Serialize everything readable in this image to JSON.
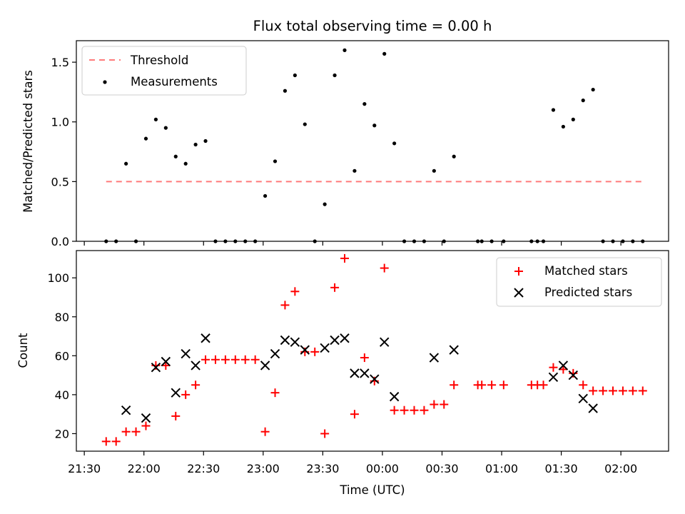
{
  "figure": {
    "title": "Flux total observing time = 0.00 h",
    "xlabel": "Time (UTC)"
  },
  "chart_data": [
    {
      "type": "scatter",
      "panel": "top",
      "ylabel": "Matched/Predicted stars",
      "ylim": [
        0,
        1.68
      ],
      "yticks": [
        "0.0",
        "0.5",
        "1.0",
        "1.5"
      ],
      "xlim": [
        "21:26",
        "02:24"
      ],
      "legend_position": "upper-left",
      "series": [
        {
          "name": "Threshold",
          "kind": "dashed-line",
          "color": "#ff7b7b",
          "x": [
            "21:41",
            "02:11"
          ],
          "y": [
            0.5,
            0.5
          ]
        },
        {
          "name": "Measurements",
          "kind": "point",
          "color": "#000000",
          "points": [
            [
              "21:41",
              0
            ],
            [
              "21:46",
              0
            ],
            [
              "21:51",
              0.65
            ],
            [
              "21:56",
              0
            ],
            [
              "22:01",
              0.86
            ],
            [
              "22:06",
              1.02
            ],
            [
              "22:11",
              0.95
            ],
            [
              "22:16",
              0.71
            ],
            [
              "22:21",
              0.65
            ],
            [
              "22:26",
              0.81
            ],
            [
              "22:31",
              0.84
            ],
            [
              "22:36",
              0
            ],
            [
              "22:41",
              0
            ],
            [
              "22:46",
              0
            ],
            [
              "22:51",
              0
            ],
            [
              "22:56",
              0
            ],
            [
              "23:01",
              0.38
            ],
            [
              "23:06",
              0.67
            ],
            [
              "23:11",
              1.26
            ],
            [
              "23:16",
              1.39
            ],
            [
              "23:21",
              0.98
            ],
            [
              "23:26",
              0
            ],
            [
              "23:31",
              0.31
            ],
            [
              "23:36",
              1.39
            ],
            [
              "23:41",
              1.6
            ],
            [
              "23:46",
              0.59
            ],
            [
              "23:51",
              1.15
            ],
            [
              "23:56",
              0.97
            ],
            [
              "00:01",
              1.57
            ],
            [
              "00:06",
              0.82
            ],
            [
              "00:11",
              0
            ],
            [
              "00:16",
              0
            ],
            [
              "00:21",
              0
            ],
            [
              "00:26",
              0.59
            ],
            [
              "00:31",
              0
            ],
            [
              "00:36",
              0.71
            ],
            [
              "00:48",
              0
            ],
            [
              "00:50",
              0
            ],
            [
              "00:55",
              0
            ],
            [
              "01:01",
              0
            ],
            [
              "01:15",
              0
            ],
            [
              "01:18",
              0
            ],
            [
              "01:21",
              0
            ],
            [
              "01:26",
              1.1
            ],
            [
              "01:31",
              0.96
            ],
            [
              "01:36",
              1.02
            ],
            [
              "01:41",
              1.18
            ],
            [
              "01:46",
              1.27
            ],
            [
              "01:51",
              0
            ],
            [
              "01:56",
              0
            ],
            [
              "02:01",
              0
            ],
            [
              "02:06",
              0
            ],
            [
              "02:11",
              0
            ]
          ]
        }
      ]
    },
    {
      "type": "scatter",
      "panel": "bottom",
      "ylabel": "Count",
      "ylim": [
        11,
        114
      ],
      "yticks": [
        "20",
        "40",
        "60",
        "80",
        "100"
      ],
      "xticks": [
        "21:30",
        "22:00",
        "22:30",
        "23:00",
        "23:30",
        "00:00",
        "00:30",
        "01:00",
        "01:30",
        "02:00"
      ],
      "legend_position": "upper-right",
      "series": [
        {
          "name": "Matched stars",
          "marker": "plus",
          "color": "#ff0000",
          "points": [
            [
              "21:41",
              16
            ],
            [
              "21:46",
              16
            ],
            [
              "21:51",
              21
            ],
            [
              "21:56",
              21
            ],
            [
              "22:01",
              24
            ],
            [
              "22:06",
              55
            ],
            [
              "22:11",
              55
            ],
            [
              "22:16",
              29
            ],
            [
              "22:21",
              40
            ],
            [
              "22:26",
              45
            ],
            [
              "22:31",
              58
            ],
            [
              "22:36",
              58
            ],
            [
              "22:41",
              58
            ],
            [
              "22:46",
              58
            ],
            [
              "22:51",
              58
            ],
            [
              "22:56",
              58
            ],
            [
              "23:01",
              21
            ],
            [
              "23:06",
              41
            ],
            [
              "23:11",
              86
            ],
            [
              "23:16",
              93
            ],
            [
              "23:21",
              62
            ],
            [
              "23:26",
              62
            ],
            [
              "23:31",
              20
            ],
            [
              "23:36",
              95
            ],
            [
              "23:41",
              110
            ],
            [
              "23:46",
              30
            ],
            [
              "23:51",
              59
            ],
            [
              "23:56",
              47
            ],
            [
              "00:01",
              105
            ],
            [
              "00:06",
              32
            ],
            [
              "00:11",
              32
            ],
            [
              "00:16",
              32
            ],
            [
              "00:21",
              32
            ],
            [
              "00:26",
              35
            ],
            [
              "00:31",
              35
            ],
            [
              "00:36",
              45
            ],
            [
              "00:48",
              45
            ],
            [
              "00:50",
              45
            ],
            [
              "00:55",
              45
            ],
            [
              "01:01",
              45
            ],
            [
              "01:15",
              45
            ],
            [
              "01:18",
              45
            ],
            [
              "01:21",
              45
            ],
            [
              "01:26",
              54
            ],
            [
              "01:31",
              53
            ],
            [
              "01:36",
              51
            ],
            [
              "01:41",
              45
            ],
            [
              "01:46",
              42
            ],
            [
              "01:51",
              42
            ],
            [
              "01:56",
              42
            ],
            [
              "02:01",
              42
            ],
            [
              "02:06",
              42
            ],
            [
              "02:11",
              42
            ]
          ]
        },
        {
          "name": "Predicted stars",
          "marker": "x",
          "color": "#000000",
          "points": [
            [
              "21:51",
              32
            ],
            [
              "22:01",
              28
            ],
            [
              "22:06",
              54
            ],
            [
              "22:11",
              57
            ],
            [
              "22:16",
              41
            ],
            [
              "22:21",
              61
            ],
            [
              "22:26",
              55
            ],
            [
              "22:31",
              69
            ],
            [
              "23:01",
              55
            ],
            [
              "23:06",
              61
            ],
            [
              "23:11",
              68
            ],
            [
              "23:16",
              67
            ],
            [
              "23:21",
              63
            ],
            [
              "23:31",
              64
            ],
            [
              "23:36",
              68
            ],
            [
              "23:41",
              69
            ],
            [
              "23:46",
              51
            ],
            [
              "23:51",
              51
            ],
            [
              "23:56",
              48
            ],
            [
              "00:01",
              67
            ],
            [
              "00:06",
              39
            ],
            [
              "00:26",
              59
            ],
            [
              "00:36",
              63
            ],
            [
              "01:26",
              49
            ],
            [
              "01:31",
              55
            ],
            [
              "01:36",
              50
            ],
            [
              "01:41",
              38
            ],
            [
              "01:46",
              33
            ]
          ]
        }
      ]
    }
  ]
}
